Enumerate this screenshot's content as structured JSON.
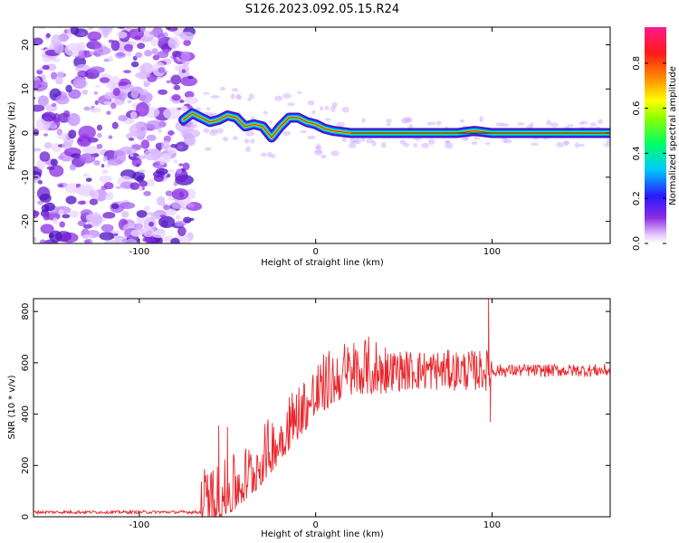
{
  "title": "S126.2023.092.05.15.R24",
  "chart_data": [
    {
      "type": "heatmap",
      "title": "S126.2023.092.05.15.R24",
      "xlabel": "Height of straight line (km)",
      "ylabel": "Frequency (Hz)",
      "xlim": [
        -160,
        167
      ],
      "ylim": [
        -25,
        24
      ],
      "x_ticks": [
        -100,
        0,
        100
      ],
      "y_ticks": [
        -20,
        -10,
        0,
        10,
        20
      ],
      "colorbar": {
        "label": "Normalized spectral amplitude",
        "range": [
          0,
          0.96
        ],
        "ticks": [
          0.0,
          0.2,
          0.4,
          0.6,
          0.8
        ]
      },
      "signal_ridge": {
        "x": [
          -75,
          -70,
          -65,
          -60,
          -55,
          -50,
          -45,
          -40,
          -35,
          -30,
          -25,
          -20,
          -15,
          -10,
          -5,
          0,
          5,
          10,
          20,
          40,
          60,
          80,
          90,
          100,
          120,
          140,
          160,
          167
        ],
        "frequency": [
          3,
          4.5,
          3.5,
          2.5,
          3,
          4,
          3.5,
          1.5,
          2,
          1.5,
          -1,
          1.5,
          3.5,
          3.5,
          2.5,
          2,
          1,
          0.5,
          0,
          0,
          0,
          0,
          0.5,
          0,
          0,
          0,
          0,
          0
        ]
      },
      "noise_region": {
        "x_range": [
          -160,
          -75
        ],
        "frequency_range": [
          -25,
          24
        ]
      },
      "grid": false
    },
    {
      "type": "line",
      "xlabel": "Height of straight line (km)",
      "ylabel": "SNR (10 * v/v)",
      "xlim": [
        -160,
        167
      ],
      "ylim": [
        0,
        850
      ],
      "x_ticks": [
        -100,
        0,
        100
      ],
      "y_ticks": [
        0,
        200,
        400,
        600,
        800
      ],
      "color": "#e8282d",
      "grid": false,
      "segments": [
        {
          "x_range": [
            -160,
            -65
          ],
          "baseline": 18,
          "amplitude": 6,
          "note": "noise floor"
        },
        {
          "x_range": [
            -65,
            40
          ],
          "baseline_start": 40,
          "baseline_end": 550,
          "amplitude": 120
        },
        {
          "x_range": [
            40,
            100
          ],
          "baseline": 570,
          "amplitude": 80
        },
        {
          "x_range": [
            100,
            167
          ],
          "baseline": 570,
          "amplitude": 25
        }
      ],
      "notable_points": [
        {
          "x": -55,
          "y": 355
        },
        {
          "x": -50,
          "y": 350
        },
        {
          "x": -15,
          "y": 465
        },
        {
          "x": 98,
          "y": 850
        },
        {
          "x": 99,
          "y": 370
        }
      ]
    }
  ]
}
